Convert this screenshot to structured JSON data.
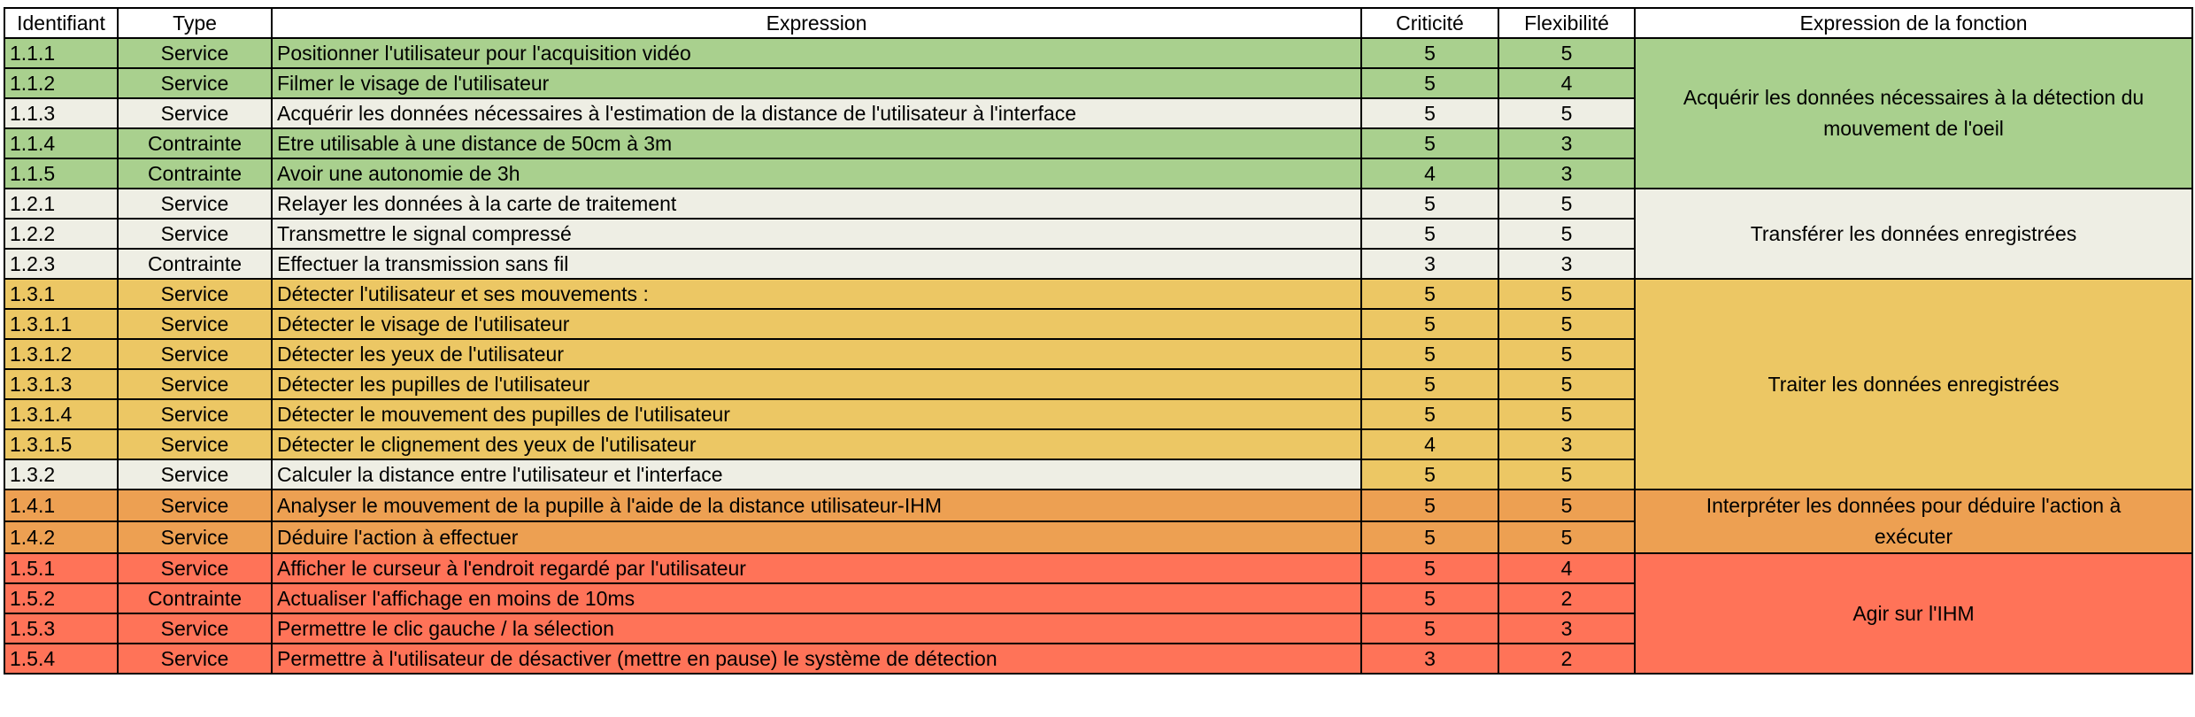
{
  "headers": {
    "id": "Identifiant",
    "type": "Type",
    "expression": "Expression",
    "criticite": "Criticité",
    "flexibilite": "Flexibilité",
    "fonction": "Expression de la fonction"
  },
  "colors": {
    "green": "#a9d08e",
    "light": "#eeeee4",
    "yellow": "#ecc764",
    "orange": "#eda052",
    "red": "#ff7358"
  },
  "rows": [
    {
      "id": "1.1.1",
      "type": "Service",
      "expression": "Positionner l'utilisateur pour l'acquisition vidéo",
      "criticite": "5",
      "flexibilite": "5",
      "row_color": "green",
      "expr_color": "green"
    },
    {
      "id": "1.1.2",
      "type": "Service",
      "expression": "Filmer le visage de l'utilisateur",
      "criticite": "5",
      "flexibilite": "4",
      "row_color": "green",
      "expr_color": "green"
    },
    {
      "id": "1.1.3",
      "type": "Service",
      "expression": "Acquérir les données nécessaires à l'estimation de la distance de l'utilisateur à l'interface",
      "criticite": "5",
      "flexibilite": "5",
      "row_color": "light",
      "expr_color": "light"
    },
    {
      "id": "1.1.4",
      "type": "Contrainte",
      "expression": "Etre utilisable à une distance de 50cm à 3m",
      "criticite": "5",
      "flexibilite": "3",
      "row_color": "green",
      "expr_color": "green"
    },
    {
      "id": "1.1.5",
      "type": "Contrainte",
      "expression": "Avoir une autonomie de 3h",
      "criticite": "4",
      "flexibilite": "3",
      "row_color": "green",
      "expr_color": "green"
    },
    {
      "id": "1.2.1",
      "type": "Service",
      "expression": "Relayer les données à la carte de traitement",
      "criticite": "5",
      "flexibilite": "5",
      "row_color": "light",
      "expr_color": "light"
    },
    {
      "id": "1.2.2",
      "type": "Service",
      "expression": "Transmettre le signal compressé",
      "criticite": "5",
      "flexibilite": "5",
      "row_color": "light",
      "expr_color": "light"
    },
    {
      "id": "1.2.3",
      "type": "Contrainte",
      "expression": "Effectuer la transmission sans fil",
      "criticite": "3",
      "flexibilite": "3",
      "row_color": "light",
      "expr_color": "light"
    },
    {
      "id": "1.3.1",
      "type": "Service",
      "expression": "Détecter l'utilisateur et ses mouvements :",
      "criticite": "5",
      "flexibilite": "5",
      "row_color": "yellow",
      "expr_color": "yellow"
    },
    {
      "id": "1.3.1.1",
      "type": "Service",
      "expression": "Détecter le visage de l'utilisateur",
      "criticite": "5",
      "flexibilite": "5",
      "row_color": "yellow",
      "expr_color": "yellow"
    },
    {
      "id": "1.3.1.2",
      "type": "Service",
      "expression": "Détecter les yeux de l'utilisateur",
      "criticite": "5",
      "flexibilite": "5",
      "row_color": "yellow",
      "expr_color": "yellow"
    },
    {
      "id": "1.3.1.3",
      "type": "Service",
      "expression": "Détecter les pupilles de l'utilisateur",
      "criticite": "5",
      "flexibilite": "5",
      "row_color": "yellow",
      "expr_color": "yellow"
    },
    {
      "id": "1.3.1.4",
      "type": "Service",
      "expression": "Détecter le mouvement des pupilles de l'utilisateur",
      "criticite": "5",
      "flexibilite": "5",
      "row_color": "yellow",
      "expr_color": "yellow"
    },
    {
      "id": "1.3.1.5",
      "type": "Service",
      "expression": "Détecter le clignement des yeux de l'utilisateur",
      "criticite": "4",
      "flexibilite": "3",
      "row_color": "yellow",
      "expr_color": "yellow"
    },
    {
      "id": "1.3.2",
      "type": "Service",
      "expression": "Calculer la distance entre l'utilisateur et l'interface",
      "criticite": "5",
      "flexibilite": "5",
      "row_color": "light",
      "expr_color": "light",
      "num_color": "yellow"
    },
    {
      "id": "1.4.1",
      "type": "Service",
      "expression": "Analyser le mouvement de la pupille à l'aide de la distance utilisateur-IHM",
      "criticite": "5",
      "flexibilite": "5",
      "row_color": "orange",
      "expr_color": "orange"
    },
    {
      "id": "1.4.2",
      "type": "Service",
      "expression": "Déduire l'action à effectuer",
      "criticite": "5",
      "flexibilite": "5",
      "row_color": "orange",
      "expr_color": "orange"
    },
    {
      "id": "1.5.1",
      "type": "Service",
      "expression": "Afficher le curseur à l'endroit regardé par l'utilisateur",
      "criticite": "5",
      "flexibilite": "4",
      "row_color": "red",
      "expr_color": "red"
    },
    {
      "id": "1.5.2",
      "type": "Contrainte",
      "expression": "Actualiser l'affichage en moins de 10ms",
      "criticite": "5",
      "flexibilite": "2",
      "row_color": "red",
      "expr_color": "red"
    },
    {
      "id": "1.5.3",
      "type": "Service",
      "expression": "Permettre le clic gauche / la sélection",
      "criticite": "5",
      "flexibilite": "3",
      "row_color": "red",
      "expr_color": "red"
    },
    {
      "id": "1.5.4",
      "type": "Service",
      "expression": "Permettre à l'utilisateur de désactiver (mettre en pause) le système de détection",
      "criticite": "3",
      "flexibilite": "2",
      "row_color": "red",
      "expr_color": "red"
    }
  ],
  "functions": [
    {
      "text": "Acquérir les données nécessaires à la détection du mouvement de l'oeil",
      "start": 0,
      "span": 5,
      "color": "green"
    },
    {
      "text": "Transférer les données enregistrées",
      "start": 5,
      "span": 3,
      "color": "light"
    },
    {
      "text": "Traiter les données enregistrées",
      "start": 8,
      "span": 7,
      "color": "yellow"
    },
    {
      "text": "Interpréter les données pour déduire l'action à exécuter",
      "start": 15,
      "span": 2,
      "color": "orange"
    },
    {
      "text": "Agir sur l'IHM",
      "start": 17,
      "span": 4,
      "color": "red"
    }
  ]
}
